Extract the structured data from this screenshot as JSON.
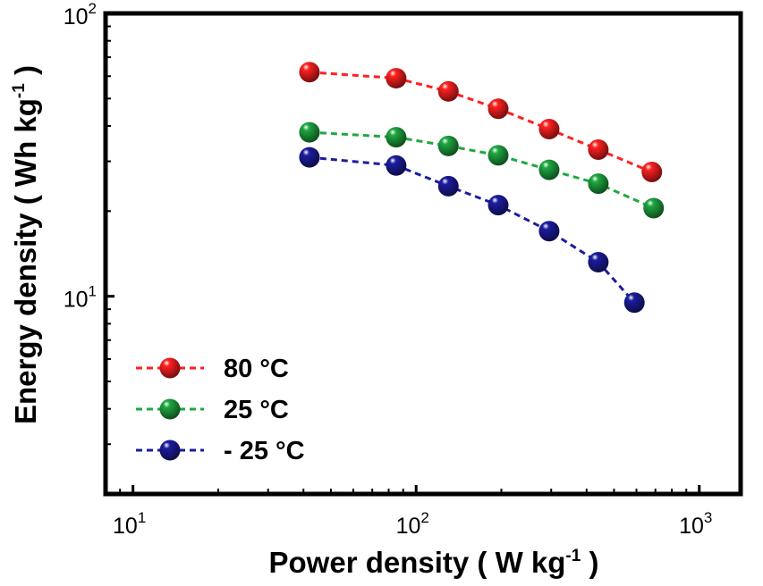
{
  "chart_data": {
    "type": "scatter",
    "title": "",
    "xlabel": "Power density ( W kg",
    "xlabel_unit_sup": "-1",
    "xlabel_close": " )",
    "ylabel": "Energy density ( Wh kg",
    "ylabel_unit_sup": "-1",
    "ylabel_close": " )",
    "xscale": "log",
    "yscale": "log",
    "xlim": [
      8,
      1400
    ],
    "ylim": [
      2,
      100
    ],
    "x_ticks": [
      {
        "base": "10",
        "exp": "1"
      },
      {
        "base": "10",
        "exp": "2"
      },
      {
        "base": "10",
        "exp": "3"
      }
    ],
    "y_ticks": [
      {
        "base": "10",
        "exp": "1"
      },
      {
        "base": "10",
        "exp": "2"
      }
    ],
    "legend_position": "bottom-left",
    "series": [
      {
        "name": "80 °C",
        "color": "#ff2020",
        "x": [
          42,
          85,
          130,
          195,
          295,
          440,
          680
        ],
        "y": [
          62,
          59,
          53,
          46,
          39,
          33,
          27.5
        ]
      },
      {
        "name": "25 °C",
        "color": "#1ea840",
        "x": [
          42,
          85,
          130,
          195,
          295,
          440,
          690
        ],
        "y": [
          38,
          36.5,
          34,
          31.5,
          28,
          25,
          20.5
        ]
      },
      {
        "name": "- 25 °C",
        "color": "#1c1ca0",
        "x": [
          42,
          85,
          130,
          195,
          295,
          440,
          590
        ],
        "y": [
          31,
          29,
          24.5,
          21,
          17,
          13.2,
          9.5
        ]
      }
    ]
  }
}
